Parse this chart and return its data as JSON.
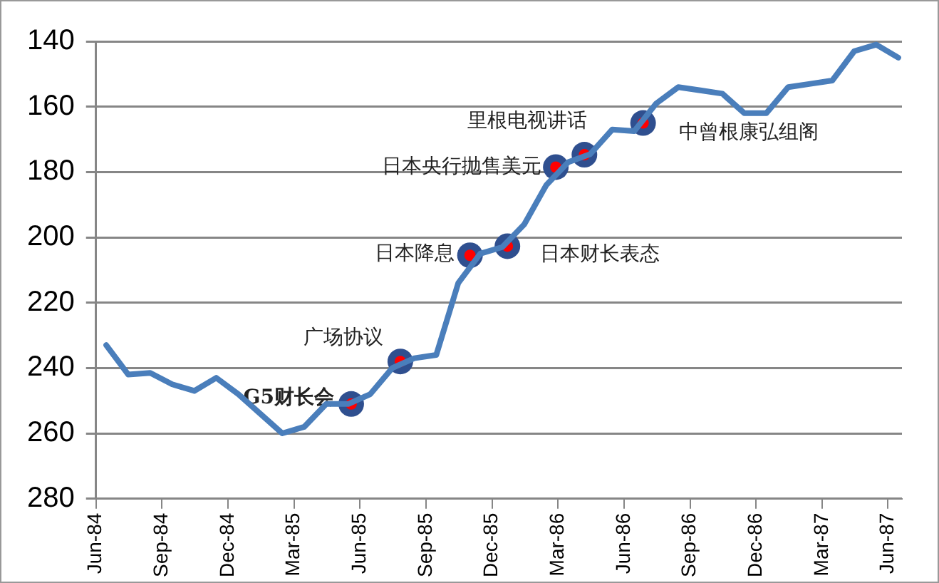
{
  "chart_data": {
    "type": "line",
    "x": [
      "1984-06-15",
      "1984-07-15",
      "1984-08-15",
      "1984-09-15",
      "1984-10-15",
      "1984-11-15",
      "1984-12-15",
      "1985-01-15",
      "1985-02-15",
      "1985-03-15",
      "1985-04-15",
      "1985-05-15",
      "1985-06-15",
      "1985-07-15",
      "1985-08-15",
      "1985-09-15",
      "1985-10-15",
      "1985-11-15",
      "1985-12-15",
      "1986-01-15",
      "1986-02-15",
      "1986-03-15",
      "1986-04-15",
      "1986-05-15",
      "1986-06-15",
      "1986-07-15",
      "1986-08-15",
      "1986-09-15",
      "1986-10-15",
      "1986-11-15",
      "1986-12-15",
      "1987-01-15",
      "1987-02-15",
      "1987-03-15",
      "1987-04-15",
      "1987-05-15",
      "1987-06-15"
    ],
    "series": [
      {
        "color": "#4a7ebb",
        "values": [
          233,
          242,
          241.5,
          245,
          247,
          243,
          248,
          254,
          260,
          258,
          251,
          251,
          248,
          240,
          237,
          236,
          214,
          205,
          203,
          196,
          184,
          177,
          174.5,
          167,
          167.5,
          159,
          154,
          155,
          156,
          162,
          162,
          154,
          153,
          152,
          143,
          141,
          145
        ]
      }
    ],
    "xlim": [
      "1984-06",
      "1987-06-20"
    ],
    "xticks": [
      {
        "value": "1984-06",
        "label": "Jun-84"
      },
      {
        "value": "1984-09",
        "label": "Sep-84"
      },
      {
        "value": "1984-12",
        "label": "Dec-84"
      },
      {
        "value": "1985-03",
        "label": "Mar-85"
      },
      {
        "value": "1985-06",
        "label": "Jun-85"
      },
      {
        "value": "1985-09",
        "label": "Sep-85"
      },
      {
        "value": "1985-12",
        "label": "Dec-85"
      },
      {
        "value": "1986-03",
        "label": "Mar-86"
      },
      {
        "value": "1986-06",
        "label": "Jun-86"
      },
      {
        "value": "1986-09",
        "label": "Sep-86"
      },
      {
        "value": "1986-12",
        "label": "Dec-86"
      },
      {
        "value": "1987-03",
        "label": "Mar-87"
      },
      {
        "value": "1987-06",
        "label": "Jun-87"
      }
    ],
    "ylim": [
      280,
      140
    ],
    "yticks": [
      140,
      160,
      180,
      200,
      220,
      240,
      260,
      280
    ],
    "grid": "y",
    "legend": false,
    "marker": "none",
    "line_style": "solid",
    "annotations": [
      {
        "text": "G5财长会",
        "x": "1985-05-19",
        "y": 251
      },
      {
        "text": "广场协议",
        "x": "1985-07-26",
        "y": 238
      },
      {
        "text": "日本降息",
        "x": "1985-11-01",
        "y": 205.5
      },
      {
        "text": "日本财长表态",
        "x": "1985-12-22",
        "y": 202.7
      },
      {
        "text": "日本央行抛售美元",
        "x": "1986-02-28",
        "y": 178.5
      },
      {
        "text": "里根电视讲话",
        "x": "1986-04-07",
        "y": 174.7
      },
      {
        "text": "中曾根康弘组阁",
        "x": "1986-06-27",
        "y": 165
      }
    ]
  }
}
